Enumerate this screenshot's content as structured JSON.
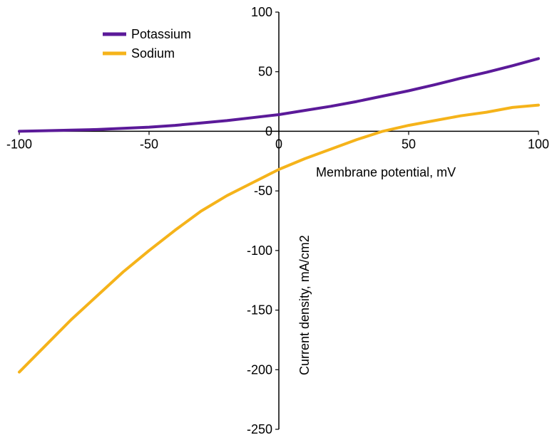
{
  "chart_data": {
    "type": "line",
    "xlabel": "Membrane potential, mV",
    "ylabel": "Current density, mA/cm2",
    "xlim": [
      -100,
      100
    ],
    "ylim": [
      -250,
      100
    ],
    "x_ticks": [
      -100,
      -50,
      0,
      50,
      100
    ],
    "y_ticks": [
      100,
      50,
      0,
      -50,
      -100,
      -150,
      -200,
      -250
    ],
    "grid": false,
    "legend_position": "top-left",
    "series": [
      {
        "name": "Potassium",
        "color": "#5b1a99",
        "x": [
          -100,
          -90,
          -80,
          -70,
          -60,
          -50,
          -40,
          -30,
          -20,
          -10,
          0,
          10,
          20,
          30,
          40,
          50,
          60,
          70,
          80,
          90,
          100
        ],
        "values": [
          0,
          0.5,
          1,
          1.5,
          2.5,
          3.5,
          5,
          7,
          9,
          11.5,
          14,
          17.5,
          21,
          25,
          29.5,
          34,
          39,
          44.5,
          49.5,
          55,
          61
        ]
      },
      {
        "name": "Sodium",
        "color": "#f5b31a",
        "x": [
          -100,
          -90,
          -80,
          -70,
          -60,
          -50,
          -40,
          -30,
          -20,
          -10,
          0,
          10,
          20,
          30,
          40,
          50,
          60,
          70,
          80,
          90,
          100
        ],
        "values": [
          -202,
          -180,
          -158,
          -138,
          -118,
          -100,
          -83,
          -67,
          -54,
          -43,
          -32,
          -23,
          -15,
          -7,
          0,
          5,
          9,
          13,
          16,
          20,
          22
        ]
      }
    ]
  }
}
